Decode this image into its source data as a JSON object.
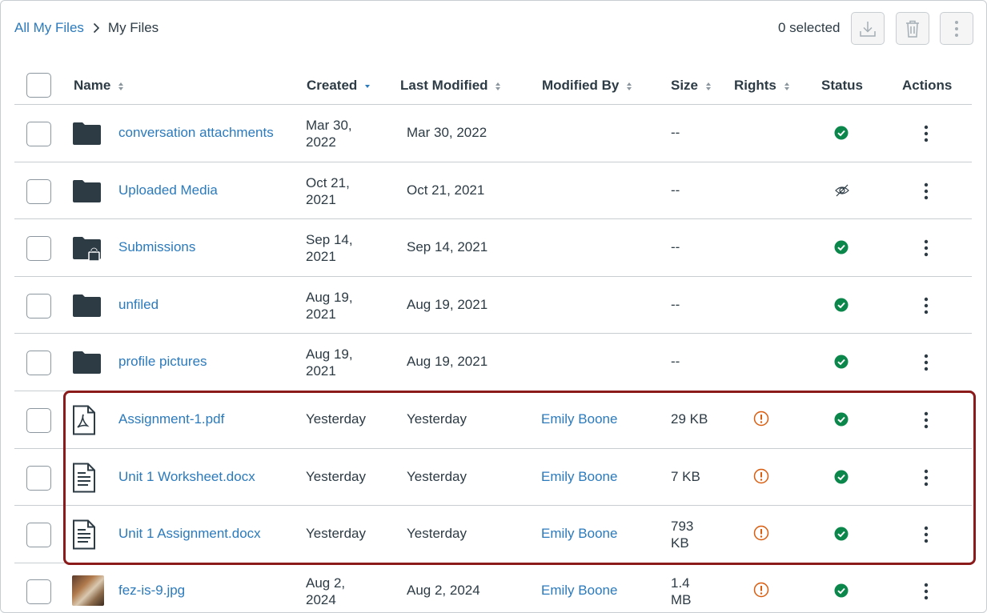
{
  "breadcrumb": {
    "root": "All My Files",
    "current": "My Files"
  },
  "toolbar": {
    "selected_label": "0 selected",
    "download_icon": "download-icon",
    "delete_icon": "trash-icon",
    "more_icon": "kebab-icon"
  },
  "columns": {
    "name": "Name",
    "created": "Created",
    "last_modified": "Last Modified",
    "modified_by": "Modified By",
    "size": "Size",
    "rights": "Rights",
    "status": "Status",
    "actions": "Actions"
  },
  "rows": [
    {
      "name": "conversation attachments",
      "type": "folder",
      "created_1": "Mar 30,",
      "created_2": "2022",
      "modified": "Mar 30, 2022",
      "modified_by": "",
      "size_1": "--",
      "size_2": "",
      "rights": "",
      "status": "published"
    },
    {
      "name": "Uploaded Media",
      "type": "folder",
      "created_1": "Oct 21,",
      "created_2": "2021",
      "modified": "Oct 21, 2021",
      "modified_by": "",
      "size_1": "--",
      "size_2": "",
      "rights": "",
      "status": "hidden"
    },
    {
      "name": "Submissions",
      "type": "locked-folder",
      "created_1": "Sep 14,",
      "created_2": "2021",
      "modified": "Sep 14, 2021",
      "modified_by": "",
      "size_1": "--",
      "size_2": "",
      "rights": "",
      "status": "published"
    },
    {
      "name": "unfiled",
      "type": "folder",
      "created_1": "Aug 19,",
      "created_2": "2021",
      "modified": "Aug 19, 2021",
      "modified_by": "",
      "size_1": "--",
      "size_2": "",
      "rights": "",
      "status": "published"
    },
    {
      "name": "profile pictures",
      "type": "folder",
      "created_1": "Aug 19,",
      "created_2": "2021",
      "modified": "Aug 19, 2021",
      "modified_by": "",
      "size_1": "--",
      "size_2": "",
      "rights": "",
      "status": "published"
    },
    {
      "name": "Assignment-1.pdf",
      "type": "pdf",
      "created_1": "Yesterday",
      "created_2": "",
      "modified": "Yesterday",
      "modified_by": "Emily Boone",
      "size_1": "29 KB",
      "size_2": "",
      "rights": "warning",
      "status": "published"
    },
    {
      "name": "Unit 1 Worksheet.docx",
      "type": "doc",
      "created_1": "Yesterday",
      "created_2": "",
      "modified": "Yesterday",
      "modified_by": "Emily Boone",
      "size_1": "7 KB",
      "size_2": "",
      "rights": "warning",
      "status": "published"
    },
    {
      "name": "Unit 1 Assignment.docx",
      "type": "doc",
      "created_1": "Yesterday",
      "created_2": "",
      "modified": "Yesterday",
      "modified_by": "Emily Boone",
      "size_1": "793",
      "size_2": "KB",
      "rights": "warning",
      "status": "published"
    },
    {
      "name": "fez-is-9.jpg",
      "type": "image",
      "created_1": "Aug 2,",
      "created_2": "2024",
      "modified": "Aug 2, 2024",
      "modified_by": "Emily Boone",
      "size_1": "1.4",
      "size_2": "MB",
      "rights": "warning",
      "status": "published"
    }
  ],
  "colors": {
    "link": "#2b7abc",
    "text": "#2d3b45",
    "status_green": "#0b874b",
    "warning_orange": "#d95d0f",
    "highlight_border": "#8b1a1a",
    "folder": "#2d3b45"
  }
}
